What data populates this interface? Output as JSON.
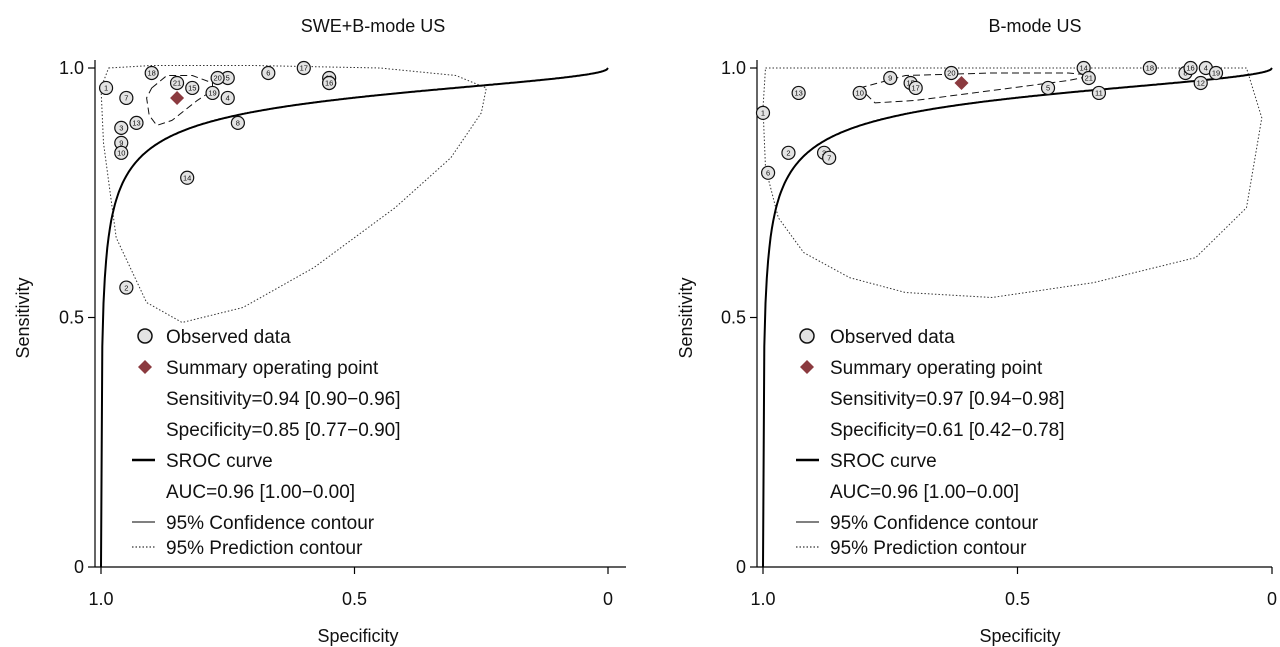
{
  "chart_data": [
    {
      "type": "scatter",
      "title": "SWE+B-mode US",
      "xlabel": "Specificity",
      "ylabel": "Sensitivity",
      "xlim": [
        1.0,
        0.0
      ],
      "ylim": [
        0.0,
        1.0
      ],
      "x_ticks": [
        "1.0",
        "0.5",
        "0"
      ],
      "y_ticks": [
        "0",
        "0.5",
        "1.0"
      ],
      "colors": {
        "curve": "#000000",
        "summary": "#8b3a3f",
        "observed_fill": "#e3e3e3"
      },
      "observed": [
        {
          "label": "1",
          "spec": 0.99,
          "sens": 0.96
        },
        {
          "label": "2",
          "spec": 0.95,
          "sens": 0.56
        },
        {
          "label": "3",
          "spec": 0.96,
          "sens": 0.88
        },
        {
          "label": "4",
          "spec": 0.75,
          "sens": 0.94
        },
        {
          "label": "5",
          "spec": 0.75,
          "sens": 0.98
        },
        {
          "label": "6",
          "spec": 0.67,
          "sens": 0.99
        },
        {
          "label": "7",
          "spec": 0.95,
          "sens": 0.94
        },
        {
          "label": "8",
          "spec": 0.73,
          "sens": 0.89
        },
        {
          "label": "9",
          "spec": 0.96,
          "sens": 0.85
        },
        {
          "label": "10",
          "spec": 0.96,
          "sens": 0.83
        },
        {
          "label": "11",
          "spec": 0.55,
          "sens": 0.98
        },
        {
          "label": "12",
          "spec": 0.55,
          "sens": 0.97
        },
        {
          "label": "13",
          "spec": 0.93,
          "sens": 0.89
        },
        {
          "label": "14",
          "spec": 0.83,
          "sens": 0.78
        },
        {
          "label": "15",
          "spec": 0.82,
          "sens": 0.96
        },
        {
          "label": "16",
          "spec": 0.55,
          "sens": 0.97
        },
        {
          "label": "17",
          "spec": 0.6,
          "sens": 1.0
        },
        {
          "label": "18",
          "spec": 0.9,
          "sens": 0.99
        },
        {
          "label": "19",
          "spec": 0.78,
          "sens": 0.95
        },
        {
          "label": "20",
          "spec": 0.77,
          "sens": 0.98
        },
        {
          "label": "21",
          "spec": 0.85,
          "sens": 0.97
        }
      ],
      "summary_point": {
        "spec": 0.85,
        "sens": 0.94
      },
      "confidence_contour": [
        [
          0.9,
          0.96
        ],
        [
          0.87,
          0.985
        ],
        [
          0.82,
          0.985
        ],
        [
          0.78,
          0.97
        ],
        [
          0.78,
          0.955
        ],
        [
          0.81,
          0.935
        ],
        [
          0.86,
          0.895
        ],
        [
          0.89,
          0.885
        ],
        [
          0.905,
          0.905
        ],
        [
          0.91,
          0.94
        ]
      ],
      "prediction_contour": [
        [
          0.985,
          1.0
        ],
        [
          0.9,
          1.005
        ],
        [
          0.7,
          1.005
        ],
        [
          0.45,
          1.0
        ],
        [
          0.3,
          0.985
        ],
        [
          0.24,
          0.96
        ],
        [
          0.25,
          0.91
        ],
        [
          0.31,
          0.82
        ],
        [
          0.42,
          0.72
        ],
        [
          0.58,
          0.6
        ],
        [
          0.72,
          0.52
        ],
        [
          0.84,
          0.49
        ],
        [
          0.91,
          0.53
        ],
        [
          0.97,
          0.66
        ],
        [
          0.995,
          0.85
        ],
        [
          1.0,
          0.96
        ]
      ],
      "legend": {
        "observed": "Observed data",
        "summary": "Summary operating point",
        "sensitivity": "Sensitivity=0.94 [0.90−0.96]",
        "specificity": "Specificity=0.85 [0.77−0.90]",
        "sroc": "SROC curve",
        "auc": "AUC=0.96 [1.00−0.00]",
        "confidence": "95% Confidence contour",
        "prediction": "95% Prediction contour"
      }
    },
    {
      "type": "scatter",
      "title": "B-mode US",
      "xlabel": "Specificity",
      "ylabel": "Sensitivity",
      "xlim": [
        1.0,
        0.0
      ],
      "ylim": [
        0.0,
        1.0
      ],
      "x_ticks": [
        "1.0",
        "0.5",
        "0"
      ],
      "y_ticks": [
        "0",
        "0.5",
        "1.0"
      ],
      "colors": {
        "curve": "#000000",
        "summary": "#8b3a3f",
        "observed_fill": "#e3e3e3"
      },
      "observed": [
        {
          "label": "1",
          "spec": 1.0,
          "sens": 0.91
        },
        {
          "label": "2",
          "spec": 0.95,
          "sens": 0.83
        },
        {
          "label": "3",
          "spec": 0.88,
          "sens": 0.83
        },
        {
          "label": "4",
          "spec": 0.13,
          "sens": 1.0
        },
        {
          "label": "5",
          "spec": 0.44,
          "sens": 0.96
        },
        {
          "label": "6",
          "spec": 0.99,
          "sens": 0.79
        },
        {
          "label": "7",
          "spec": 0.87,
          "sens": 0.82
        },
        {
          "label": "8",
          "spec": 0.17,
          "sens": 0.99
        },
        {
          "label": "9",
          "spec": 0.75,
          "sens": 0.98
        },
        {
          "label": "10",
          "spec": 0.81,
          "sens": 0.95
        },
        {
          "label": "11",
          "spec": 0.34,
          "sens": 0.95
        },
        {
          "label": "12",
          "spec": 0.14,
          "sens": 0.97
        },
        {
          "label": "13",
          "spec": 0.93,
          "sens": 0.95
        },
        {
          "label": "14",
          "spec": 0.37,
          "sens": 1.0
        },
        {
          "label": "15",
          "spec": 0.71,
          "sens": 0.97
        },
        {
          "label": "16",
          "spec": 0.16,
          "sens": 1.0
        },
        {
          "label": "17",
          "spec": 0.7,
          "sens": 0.96
        },
        {
          "label": "18",
          "spec": 0.24,
          "sens": 1.0
        },
        {
          "label": "19",
          "spec": 0.11,
          "sens": 0.99
        },
        {
          "label": "20",
          "spec": 0.63,
          "sens": 0.99
        },
        {
          "label": "21",
          "spec": 0.36,
          "sens": 0.98
        }
      ],
      "summary_point": {
        "spec": 0.61,
        "sens": 0.97
      },
      "confidence_contour": [
        [
          0.81,
          0.96
        ],
        [
          0.72,
          0.985
        ],
        [
          0.55,
          0.99
        ],
        [
          0.4,
          0.99
        ],
        [
          0.35,
          0.985
        ],
        [
          0.4,
          0.975
        ],
        [
          0.55,
          0.955
        ],
        [
          0.7,
          0.935
        ],
        [
          0.78,
          0.93
        ]
      ],
      "prediction_contour": [
        [
          0.995,
          1.0
        ],
        [
          0.7,
          1.0
        ],
        [
          0.3,
          1.0
        ],
        [
          0.05,
          1.0
        ],
        [
          0.02,
          0.9
        ],
        [
          0.05,
          0.72
        ],
        [
          0.15,
          0.62
        ],
        [
          0.35,
          0.57
        ],
        [
          0.55,
          0.54
        ],
        [
          0.72,
          0.55
        ],
        [
          0.83,
          0.58
        ],
        [
          0.92,
          0.63
        ],
        [
          0.97,
          0.7
        ],
        [
          0.995,
          0.8
        ],
        [
          1.0,
          0.92
        ]
      ],
      "legend": {
        "observed": "Observed data",
        "summary": "Summary operating point",
        "sensitivity": "Sensitivity=0.97 [0.94−0.98]",
        "specificity": "Specificity=0.61 [0.42−0.78]",
        "sroc": "SROC curve",
        "auc": "AUC=0.96 [1.00−0.00]",
        "confidence": "95% Confidence contour",
        "prediction": "95% Prediction contour"
      }
    }
  ]
}
